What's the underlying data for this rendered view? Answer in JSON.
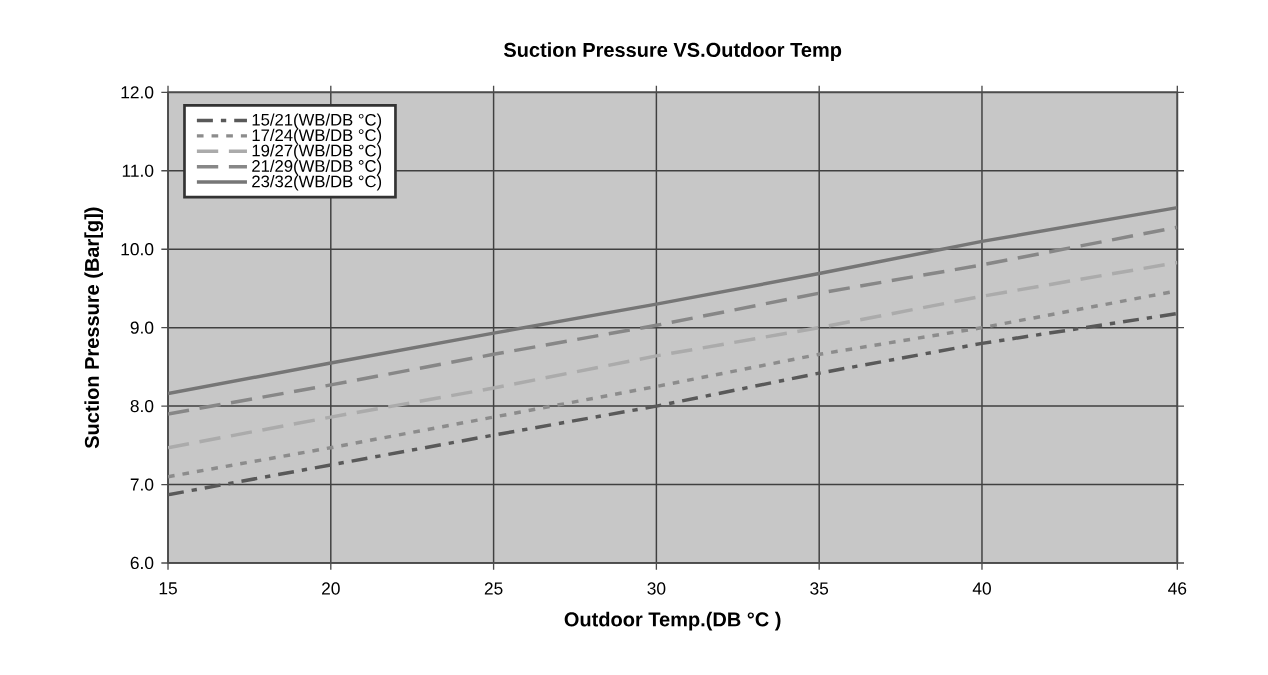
{
  "chart_data": {
    "type": "line",
    "title": "Suction Pressure VS.Outdoor Temp",
    "xlabel": "Outdoor Temp.(DB °C )",
    "ylabel": "Suction Pressure (Bar[g])",
    "x": [
      15,
      20,
      25,
      30,
      35,
      40,
      46
    ],
    "series": [
      {
        "name": "15/21(WB/DB °C)",
        "color": "#595959",
        "line_style": "dashdot",
        "values": [
          6.87,
          7.25,
          7.63,
          8.0,
          8.42,
          8.8,
          9.18
        ]
      },
      {
        "name": "17/24(WB/DB °C)",
        "color": "#8c8c8c",
        "line_style": "dotted",
        "values": [
          7.1,
          7.47,
          7.86,
          8.25,
          8.66,
          9.0,
          9.47
        ]
      },
      {
        "name": "19/27(WB/DB °C)",
        "color": "#ababab",
        "line_style": "dashed",
        "values": [
          7.47,
          7.86,
          8.23,
          8.64,
          9.0,
          9.4,
          9.83
        ]
      },
      {
        "name": "21/29(WB/DB °C)",
        "color": "#878787",
        "line_style": "dashed",
        "values": [
          7.9,
          8.27,
          8.66,
          9.03,
          9.44,
          9.8,
          10.28
        ]
      },
      {
        "name": "23/32(WB/DB °C)",
        "color": "#767676",
        "line_style": "solid",
        "values": [
          8.16,
          8.55,
          8.93,
          9.3,
          9.69,
          10.1,
          10.53
        ]
      }
    ],
    "xlim": [
      15,
      46
    ],
    "ylim": [
      6,
      12
    ],
    "xticks": [
      15,
      20,
      25,
      30,
      35,
      40,
      46
    ],
    "yticks": [
      {
        "value": 6,
        "label": "6.0"
      },
      {
        "value": 7,
        "label": "7.0"
      },
      {
        "value": 8,
        "label": "8.0"
      },
      {
        "value": 9,
        "label": "9.0"
      },
      {
        "value": 10,
        "label": "10.0"
      },
      {
        "value": 11,
        "label": "11.0"
      },
      {
        "value": 12,
        "label": "12.0"
      }
    ],
    "grid": true,
    "legend": "top left",
    "marker": "none"
  }
}
